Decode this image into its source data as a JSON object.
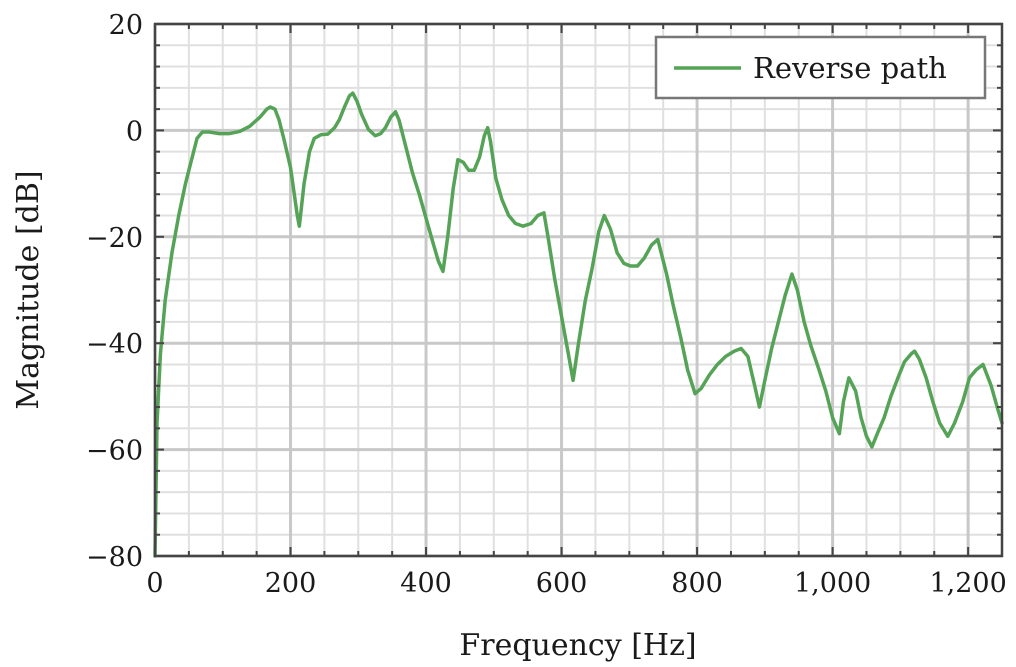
{
  "chart_data": {
    "type": "line",
    "xlabel": "Frequency [Hz]",
    "ylabel": "Magnitude [dB]",
    "xlim": [
      0,
      1250
    ],
    "ylim": [
      -80,
      20
    ],
    "x_ticks": [
      0,
      200,
      400,
      600,
      800,
      1000,
      1200
    ],
    "x_tick_labels": [
      "0",
      "200",
      "400",
      "600",
      "800",
      "1,000",
      "1,200"
    ],
    "y_ticks": [
      -80,
      -60,
      -40,
      -20,
      0,
      20
    ],
    "y_tick_labels": [
      "−80",
      "−60",
      "−40",
      "−20",
      "0",
      "20"
    ],
    "grid": true,
    "legend_position": "top-right",
    "series": [
      {
        "name": "Reverse path",
        "color": "#55a357",
        "points": [
          [
            0,
            -80
          ],
          [
            3,
            -55
          ],
          [
            8,
            -42
          ],
          [
            15,
            -32
          ],
          [
            25,
            -23
          ],
          [
            35,
            -16
          ],
          [
            45,
            -10
          ],
          [
            55,
            -5
          ],
          [
            62,
            -1.5
          ],
          [
            70,
            -0.3
          ],
          [
            80,
            -0.3
          ],
          [
            95,
            -0.6
          ],
          [
            110,
            -0.6
          ],
          [
            125,
            -0.2
          ],
          [
            140,
            0.8
          ],
          [
            155,
            2.5
          ],
          [
            165,
            4
          ],
          [
            170,
            4.4
          ],
          [
            177,
            4
          ],
          [
            183,
            2
          ],
          [
            190,
            -1.5
          ],
          [
            200,
            -7
          ],
          [
            210,
            -16
          ],
          [
            213,
            -18
          ],
          [
            220,
            -10
          ],
          [
            228,
            -4
          ],
          [
            235,
            -1.5
          ],
          [
            245,
            -0.8
          ],
          [
            255,
            -0.7
          ],
          [
            265,
            0.5
          ],
          [
            272,
            2
          ],
          [
            280,
            4.5
          ],
          [
            287,
            6.5
          ],
          [
            292,
            7
          ],
          [
            298,
            5.5
          ],
          [
            305,
            3
          ],
          [
            315,
            0.2
          ],
          [
            325,
            -1
          ],
          [
            333,
            -0.6
          ],
          [
            340,
            0.5
          ],
          [
            348,
            2.5
          ],
          [
            355,
            3.5
          ],
          [
            360,
            2
          ],
          [
            370,
            -3
          ],
          [
            380,
            -8
          ],
          [
            390,
            -12
          ],
          [
            400,
            -16.5
          ],
          [
            410,
            -21
          ],
          [
            418,
            -24.5
          ],
          [
            425,
            -26.5
          ],
          [
            432,
            -20
          ],
          [
            440,
            -11
          ],
          [
            447,
            -5.5
          ],
          [
            455,
            -6
          ],
          [
            463,
            -7.5
          ],
          [
            471,
            -7.5
          ],
          [
            479,
            -5
          ],
          [
            486,
            -1
          ],
          [
            491,
            0.5
          ],
          [
            495,
            -2
          ],
          [
            503,
            -9
          ],
          [
            512,
            -13
          ],
          [
            522,
            -16
          ],
          [
            532,
            -17.5
          ],
          [
            543,
            -18
          ],
          [
            555,
            -17.5
          ],
          [
            565,
            -16
          ],
          [
            574,
            -15.5
          ],
          [
            580,
            -20
          ],
          [
            590,
            -28
          ],
          [
            600,
            -35
          ],
          [
            610,
            -42
          ],
          [
            617,
            -47
          ],
          [
            625,
            -40
          ],
          [
            635,
            -32
          ],
          [
            645,
            -26
          ],
          [
            655,
            -19
          ],
          [
            663,
            -16
          ],
          [
            672,
            -18.5
          ],
          [
            682,
            -23
          ],
          [
            692,
            -25
          ],
          [
            702,
            -25.5
          ],
          [
            712,
            -25.5
          ],
          [
            722,
            -24
          ],
          [
            733,
            -21.5
          ],
          [
            742,
            -20.5
          ],
          [
            755,
            -27
          ],
          [
            765,
            -33
          ],
          [
            776,
            -39
          ],
          [
            786,
            -45
          ],
          [
            797,
            -49.5
          ],
          [
            806,
            -48.5
          ],
          [
            818,
            -46
          ],
          [
            830,
            -44
          ],
          [
            842,
            -42.5
          ],
          [
            855,
            -41.5
          ],
          [
            865,
            -41
          ],
          [
            875,
            -42.5
          ],
          [
            885,
            -48
          ],
          [
            892,
            -52
          ],
          [
            900,
            -47
          ],
          [
            910,
            -41
          ],
          [
            920,
            -36
          ],
          [
            930,
            -31
          ],
          [
            940,
            -27
          ],
          [
            948,
            -30
          ],
          [
            958,
            -36
          ],
          [
            968,
            -40.5
          ],
          [
            980,
            -45
          ],
          [
            990,
            -49
          ],
          [
            1000,
            -54
          ],
          [
            1010,
            -57
          ],
          [
            1016,
            -51
          ],
          [
            1024,
            -46.5
          ],
          [
            1034,
            -49
          ],
          [
            1042,
            -54
          ],
          [
            1050,
            -57.5
          ],
          [
            1058,
            -59.5
          ],
          [
            1066,
            -57
          ],
          [
            1076,
            -54
          ],
          [
            1086,
            -50
          ],
          [
            1098,
            -46
          ],
          [
            1106,
            -43.5
          ],
          [
            1116,
            -42
          ],
          [
            1121,
            -41.5
          ],
          [
            1128,
            -43
          ],
          [
            1138,
            -46.5
          ],
          [
            1148,
            -51
          ],
          [
            1158,
            -55
          ],
          [
            1170,
            -57.5
          ],
          [
            1180,
            -55
          ],
          [
            1192,
            -51
          ],
          [
            1202,
            -46.5
          ],
          [
            1212,
            -45
          ],
          [
            1222,
            -44
          ],
          [
            1234,
            -48
          ],
          [
            1244,
            -52.5
          ],
          [
            1250,
            -55
          ]
        ]
      }
    ]
  }
}
